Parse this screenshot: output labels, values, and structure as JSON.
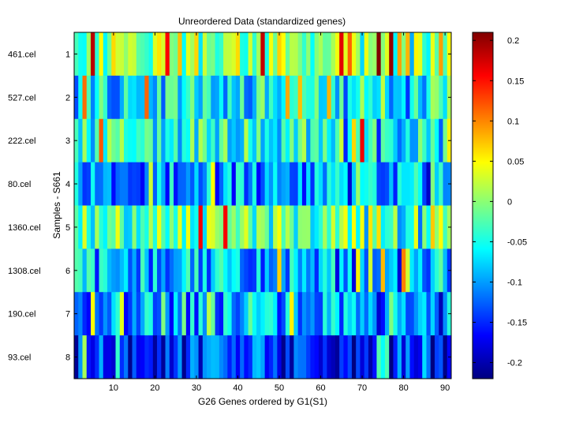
{
  "chart_data": {
    "type": "heatmap",
    "title": "Unreordered Data (standardized genes)",
    "xlabel": "G26 Genes ordered by G1(S1)",
    "ylabel": "Samples - S661",
    "x_range": [
      0.5,
      91.5
    ],
    "x_ticks": [
      10,
      20,
      30,
      40,
      50,
      60,
      70,
      80,
      90
    ],
    "rows": [
      {
        "index": 1,
        "index_label": "1",
        "sample": "461.cel"
      },
      {
        "index": 2,
        "index_label": "2",
        "sample": "527.cel"
      },
      {
        "index": 3,
        "index_label": "3",
        "sample": "222.cel"
      },
      {
        "index": 4,
        "index_label": "4",
        "sample": "80.cel"
      },
      {
        "index": 5,
        "index_label": "5",
        "sample": "1360.cel"
      },
      {
        "index": 6,
        "index_label": "6",
        "sample": "1308.cel"
      },
      {
        "index": 7,
        "index_label": "7",
        "sample": "190.cel"
      },
      {
        "index": 8,
        "index_label": "8",
        "sample": "93.cel"
      }
    ],
    "n_columns": 91,
    "row_means": [
      0.0,
      -0.07,
      -0.05,
      -0.1,
      -0.02,
      -0.09,
      -0.1,
      -0.15
    ],
    "colorbar": {
      "colormap": "jet",
      "vmin": -0.22,
      "vmax": 0.21,
      "ticks": [
        0.2,
        0.15,
        0.1,
        0.05,
        0,
        -0.05,
        -0.1,
        -0.15,
        -0.2
      ],
      "tick_labels": [
        "0.2",
        "0.15",
        "0.1",
        "0.05",
        "0",
        "-0.05",
        "-0.1",
        "-0.15",
        "-0.2"
      ]
    }
  }
}
